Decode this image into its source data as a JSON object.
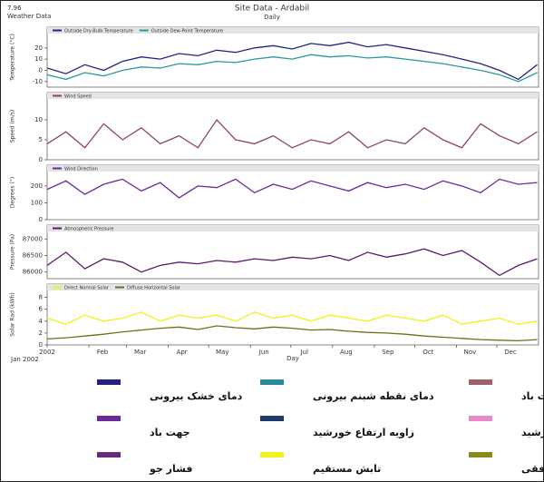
{
  "header": {
    "version": "7.96",
    "subtitle": "Weather Data",
    "title": "Site Data - Ardabil",
    "period": "Daily"
  },
  "chart_data": [
    {
      "type": "line",
      "ylabel": "Temperature (°C)",
      "ylim": [
        -15,
        32
      ],
      "yticks": [
        -10,
        0,
        10,
        20
      ],
      "series": [
        {
          "name": "Outside Dry-Bulb Temperature",
          "color": "#26237e",
          "values": [
            2,
            -3,
            5,
            0,
            8,
            12,
            10,
            15,
            13,
            18,
            16,
            20,
            22,
            19,
            24,
            22,
            25,
            21,
            23,
            20,
            17,
            14,
            10,
            6,
            0,
            -8,
            5
          ]
        },
        {
          "name": "Outside Dew-Point Temperature",
          "color": "#2a9a9a",
          "values": [
            -4,
            -8,
            -2,
            -5,
            0,
            3,
            2,
            6,
            5,
            8,
            7,
            10,
            12,
            10,
            14,
            12,
            13,
            11,
            12,
            10,
            8,
            6,
            3,
            0,
            -4,
            -10,
            -2
          ]
        }
      ]
    },
    {
      "type": "line",
      "ylabel": "Speed (m/s)",
      "ylim": [
        0,
        15
      ],
      "yticks": [
        0,
        5,
        10
      ],
      "series": [
        {
          "name": "Wind Speed",
          "color": "#8b4a52",
          "values": [
            4,
            7,
            3,
            9,
            5,
            8,
            4,
            6,
            3,
            10,
            5,
            4,
            6,
            3,
            5,
            4,
            7,
            3,
            5,
            4,
            8,
            5,
            3,
            9,
            6,
            4,
            7
          ]
        }
      ]
    },
    {
      "type": "line",
      "ylabel": "Degrees (°)",
      "ylim": [
        0,
        280
      ],
      "yticks": [
        0,
        100,
        200
      ],
      "series": [
        {
          "name": "Wind Direction",
          "color": "#6a2a9a",
          "values": [
            180,
            230,
            150,
            210,
            240,
            170,
            220,
            130,
            200,
            190,
            240,
            160,
            210,
            180,
            230,
            200,
            170,
            220,
            190,
            210,
            180,
            230,
            200,
            160,
            240,
            210,
            220
          ]
        }
      ]
    },
    {
      "type": "line",
      "ylabel": "Pressure (Pa)",
      "ylim": [
        85800,
        87200
      ],
      "yticks": [
        86000,
        86500,
        87000
      ],
      "series": [
        {
          "name": "Atmospheric Pressure",
          "color": "#5a1a6a",
          "values": [
            86200,
            86600,
            86100,
            86400,
            86300,
            86000,
            86200,
            86300,
            86250,
            86350,
            86300,
            86400,
            86350,
            86450,
            86400,
            86500,
            86350,
            86600,
            86450,
            86550,
            86700,
            86500,
            86650,
            86300,
            85900,
            86200,
            86400
          ]
        }
      ]
    },
    {
      "type": "line",
      "ylabel": "Solar Rad (kWh)",
      "ylim": [
        0,
        9
      ],
      "yticks": [
        0,
        2,
        4,
        6,
        8
      ],
      "xlabel": "Day",
      "x_start_label": "Jan 2002",
      "xlim": [
        0,
        365
      ],
      "xticks": [
        {
          "value": 0,
          "label": "2002"
        },
        {
          "value": 31,
          "label": "Feb"
        },
        {
          "value": 59,
          "label": "Mar"
        },
        {
          "value": 90,
          "label": "Apr"
        },
        {
          "value": 120,
          "label": "May"
        },
        {
          "value": 151,
          "label": "Jun"
        },
        {
          "value": 181,
          "label": "Jul"
        },
        {
          "value": 212,
          "label": "Aug"
        },
        {
          "value": 243,
          "label": "Sep"
        },
        {
          "value": 273,
          "label": "Oct"
        },
        {
          "value": 304,
          "label": "Nov"
        },
        {
          "value": 334,
          "label": "Dec"
        }
      ],
      "x": [
        0,
        14,
        28,
        42,
        56,
        70,
        84,
        98,
        112,
        126,
        140,
        154,
        168,
        182,
        196,
        210,
        224,
        238,
        252,
        266,
        280,
        294,
        308,
        322,
        336,
        350,
        364
      ],
      "series": [
        {
          "name": "Direct Normal Solar",
          "color": "#f2f21a",
          "values": [
            4.5,
            3.5,
            5,
            4,
            4.5,
            5.5,
            4,
            5,
            4.5,
            5,
            4,
            5.5,
            4.5,
            5,
            4,
            5,
            4.5,
            4,
            5,
            4.5,
            4,
            5,
            3.5,
            4,
            4.5,
            3.5,
            4
          ]
        },
        {
          "name": "Diffuse Horizontal Solar",
          "color": "#6e6e1c",
          "values": [
            1,
            1.2,
            1.5,
            1.8,
            2.2,
            2.5,
            2.8,
            3,
            2.6,
            3.2,
            2.9,
            2.7,
            3,
            2.8,
            2.5,
            2.6,
            2.3,
            2.1,
            2,
            1.8,
            1.5,
            1.3,
            1.1,
            0.9,
            0.8,
            0.7,
            0.9
          ]
        }
      ]
    }
  ],
  "legend": [
    {
      "label": "دمای خشک بیرونی",
      "color": "#26237e"
    },
    {
      "label": "دمای نقطه شبنم بیرونی",
      "color": "#2a8a9a"
    },
    {
      "label": "سرعت باد",
      "color": "#a0606a"
    },
    {
      "label": "جهت باد",
      "color": "#6a2a9a"
    },
    {
      "label": "زاویه ارتفاع خورشید",
      "color": "#1e3a6a"
    },
    {
      "label": "زاویه سمت خورشید",
      "color": "#e88ac8"
    },
    {
      "label": "فشار جو",
      "color": "#6a2a7a"
    },
    {
      "label": "تابش مستقیم",
      "color": "#f2f21a"
    },
    {
      "label": "تابش پراکنده افقی",
      "color": "#8a8a1c"
    }
  ]
}
